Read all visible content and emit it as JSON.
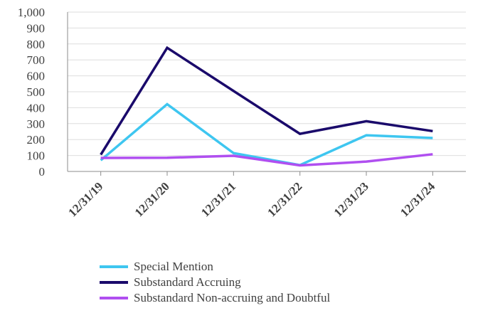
{
  "chart_data": {
    "type": "line",
    "title": "",
    "xlabel": "",
    "ylabel": "",
    "categories": [
      "12/31/19",
      "12/31/20",
      "12/31/21",
      "12/31/22",
      "12/31/23",
      "12/31/24"
    ],
    "ylim": [
      0,
      1000
    ],
    "yticks": [
      0,
      100,
      200,
      300,
      400,
      500,
      600,
      700,
      800,
      900,
      1000
    ],
    "ytick_labels": [
      "0",
      "100",
      "200",
      "300",
      "400",
      "500",
      "600",
      "700",
      "800",
      "900",
      "1,000"
    ],
    "grid": true,
    "legend_position": "bottom-left",
    "series": [
      {
        "name": "Special Mention",
        "color": "#3ec6f0",
        "values": [
          70,
          422,
          115,
          40,
          227,
          210
        ]
      },
      {
        "name": "Substandard Accruing",
        "color": "#1a0a6b",
        "values": [
          105,
          776,
          505,
          236,
          315,
          253
        ]
      },
      {
        "name": "Substandard Non-accruing and Doubtful",
        "color": "#b04ff0",
        "values": [
          85,
          86,
          98,
          38,
          62,
          108
        ]
      }
    ]
  }
}
